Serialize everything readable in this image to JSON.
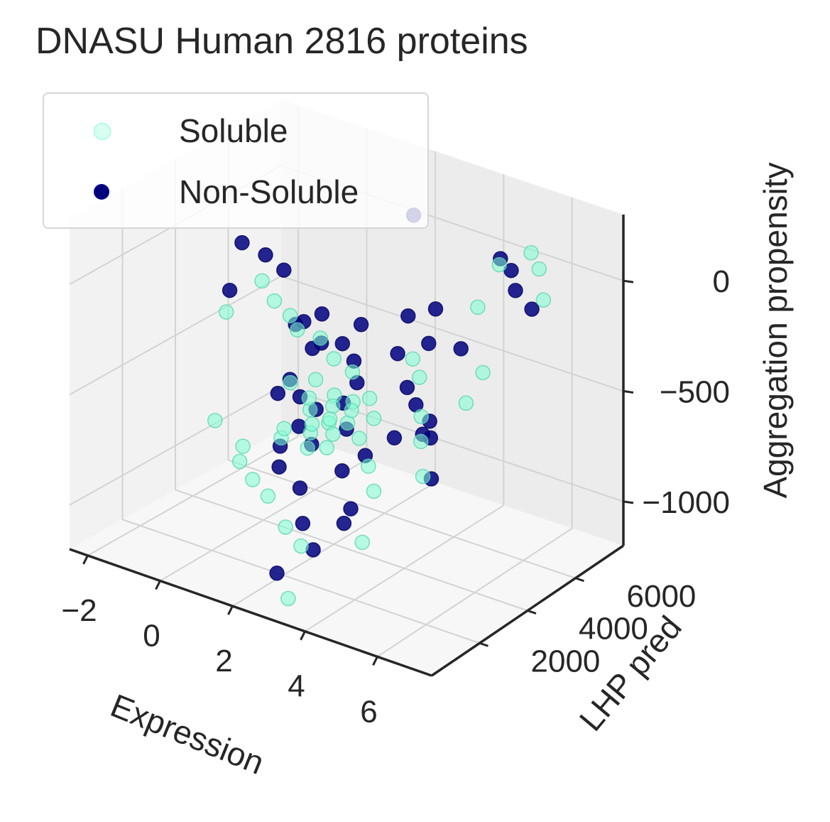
{
  "chart_data": {
    "type": "scatter",
    "title": "DNASU Human 2816 proteins",
    "xlabel": "Expression",
    "ylabel": "LHP pred",
    "zlabel": "Aggregation propensity",
    "xticks": [
      "−2",
      "0",
      "2",
      "4",
      "6"
    ],
    "yticks": [
      "2000",
      "4000",
      "6000"
    ],
    "zticks": [
      "0",
      "−500",
      "−1000"
    ],
    "xlim": [
      -2.5,
      7.5
    ],
    "ylim": [
      0,
      8000
    ],
    "zlim": [
      -1200,
      300
    ],
    "grid": true,
    "legend_position": "top-left",
    "series": [
      {
        "name": "Non-Soluble",
        "color": "#00007f",
        "points": [
          [
            -1.8,
            5600,
            -150
          ],
          [
            -1.2,
            5700,
            -180
          ],
          [
            -0.6,
            5600,
            -210
          ],
          [
            -1.7,
            5000,
            -320
          ],
          [
            1.0,
            4200,
            -260
          ],
          [
            1.3,
            4500,
            -230
          ],
          [
            0.4,
            4700,
            -340
          ],
          [
            1.1,
            4400,
            -390
          ],
          [
            2.1,
            4200,
            -300
          ],
          [
            2.5,
            4100,
            -350
          ],
          [
            0.9,
            3800,
            -500
          ],
          [
            1.4,
            3500,
            -530
          ],
          [
            2.0,
            3300,
            -540
          ],
          [
            2.7,
            3400,
            -480
          ],
          [
            1.8,
            2900,
            -600
          ],
          [
            2.3,
            2700,
            -640
          ],
          [
            3.0,
            3100,
            -560
          ],
          [
            1.2,
            3000,
            -730
          ],
          [
            1.6,
            2400,
            -760
          ],
          [
            2.4,
            2100,
            -790
          ],
          [
            3.3,
            2500,
            -690
          ],
          [
            3.6,
            3000,
            -640
          ],
          [
            4.0,
            3600,
            -580
          ],
          [
            3.8,
            4400,
            -420
          ],
          [
            3.4,
            5000,
            -160
          ],
          [
            3.9,
            5400,
            -130
          ],
          [
            4.2,
            4700,
            -220
          ],
          [
            3.6,
            4300,
            -270
          ],
          [
            4.4,
            3900,
            -430
          ],
          [
            2.9,
            1500,
            -880
          ],
          [
            3.4,
            1200,
            -950
          ],
          [
            2.6,
            900,
            -1080
          ],
          [
            4.1,
            1700,
            -760
          ],
          [
            4.3,
            4600,
            -560
          ],
          [
            4.8,
            3600,
            -520
          ],
          [
            3.2,
            5500,
            250
          ],
          [
            5.9,
            5200,
            220
          ],
          [
            6.0,
            5500,
            150
          ],
          [
            6.4,
            5100,
            110
          ],
          [
            6.8,
            5200,
            40
          ],
          [
            5.4,
            4300,
            -150
          ],
          [
            5.3,
            3200,
            -480
          ],
          [
            5.6,
            2800,
            -620
          ],
          [
            3.7,
            2000,
            -870
          ],
          [
            2.2,
            4800,
            -250
          ],
          [
            1.5,
            4200,
            -330
          ],
          [
            0.7,
            3600,
            -560
          ],
          [
            2.8,
            3800,
            -410
          ]
        ]
      },
      {
        "name": "Soluble",
        "color": "#7fffd4",
        "points": [
          [
            -1.0,
            5300,
            -260
          ],
          [
            -0.5,
            5100,
            -310
          ],
          [
            0.1,
            4900,
            -330
          ],
          [
            -1.5,
            4600,
            -380
          ],
          [
            0.6,
            4500,
            -340
          ],
          [
            1.4,
            4300,
            -320
          ],
          [
            2.0,
            4000,
            -360
          ],
          [
            2.6,
            3900,
            -380
          ],
          [
            1.7,
            3700,
            -450
          ],
          [
            2.3,
            3600,
            -480
          ],
          [
            2.9,
            3500,
            -470
          ],
          [
            1.9,
            3200,
            -540
          ],
          [
            2.5,
            3100,
            -560
          ],
          [
            3.1,
            3000,
            -520
          ],
          [
            2.2,
            2800,
            -600
          ],
          [
            2.8,
            2600,
            -620
          ],
          [
            1.3,
            2900,
            -680
          ],
          [
            1.0,
            1700,
            -720
          ],
          [
            1.5,
            1500,
            -760
          ],
          [
            2.0,
            1400,
            -800
          ],
          [
            2.7,
            1100,
            -880
          ],
          [
            3.2,
            1000,
            -930
          ],
          [
            4.1,
            4200,
            -260
          ],
          [
            4.5,
            3900,
            -300
          ],
          [
            4.9,
            3400,
            -420
          ],
          [
            5.1,
            3100,
            -500
          ],
          [
            5.5,
            2600,
            -600
          ],
          [
            3.9,
            2700,
            -650
          ],
          [
            4.4,
            2200,
            -700
          ],
          [
            6.5,
            5600,
            250
          ],
          [
            6.8,
            5500,
            200
          ],
          [
            5.8,
            5300,
            180
          ],
          [
            7.2,
            5100,
            110
          ],
          [
            5.6,
            4700,
            20
          ],
          [
            6.3,
            3900,
            -180
          ],
          [
            6.1,
            3500,
            -300
          ],
          [
            3.0,
            3300,
            -490
          ],
          [
            2.4,
            3400,
            -510
          ],
          [
            1.8,
            3300,
            -500
          ],
          [
            2.6,
            3000,
            -530
          ],
          [
            3.5,
            2900,
            -560
          ],
          [
            2.1,
            3000,
            -580
          ],
          [
            2.9,
            2700,
            -560
          ],
          [
            1.6,
            2600,
            -600
          ],
          [
            3.3,
            3600,
            -440
          ],
          [
            0.8,
            2100,
            -690
          ],
          [
            -0.2,
            2400,
            -650
          ],
          [
            4.7,
            1300,
            -850
          ],
          [
            3.4,
            200,
            -1100
          ],
          [
            1.2,
            3400,
            -470
          ],
          [
            2.4,
            2400,
            -630
          ],
          [
            3.7,
            3200,
            -480
          ]
        ]
      }
    ]
  }
}
